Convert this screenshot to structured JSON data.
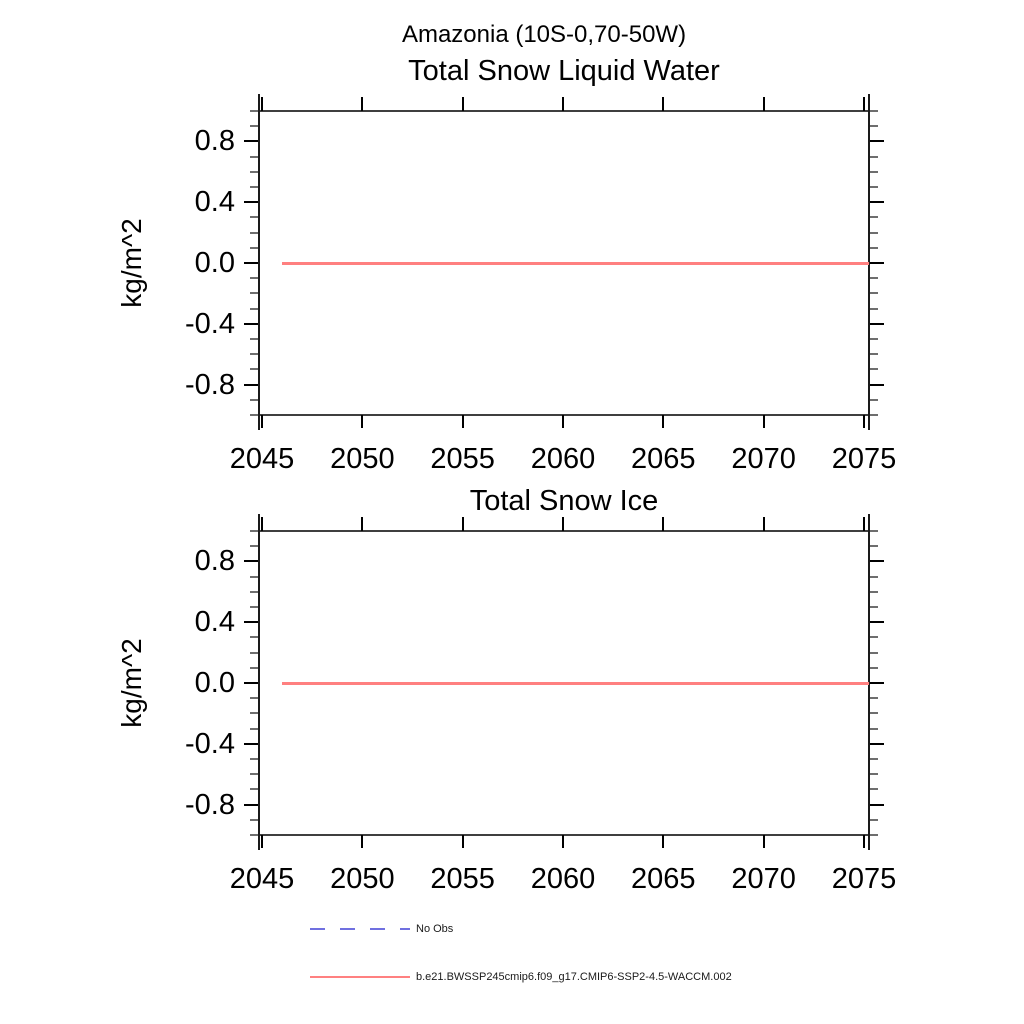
{
  "figure": {
    "suptitle": "Amazonia (10S-0,70-50W)"
  },
  "chart_data": [
    {
      "type": "line",
      "title": "Total Snow Liquid Water",
      "xlabel": "",
      "ylabel": "kg/m^2",
      "xlim": [
        2044.85,
        2075.25
      ],
      "ylim": [
        -1.0,
        1.0
      ],
      "xticks": [
        2045,
        2050,
        2055,
        2060,
        2065,
        2070,
        2075
      ],
      "yticks": [
        0.8,
        0.4,
        0.0,
        -0.4,
        -0.8
      ],
      "ytick_labels": [
        "0.8",
        "0.4",
        "0.0",
        "-0.4",
        "-0.8"
      ],
      "yminor_step": 0.1,
      "grid": false,
      "legend_position": "below-figure",
      "series": [
        {
          "name": "b.e21.BWSSP245cmip6.f09_g17.CMIP6-SSP2-4.5-WACCM.002",
          "color": "#ff8080",
          "x": [
            2046.0,
            2075.25
          ],
          "y": [
            0.0,
            0.0
          ]
        }
      ]
    },
    {
      "type": "line",
      "title": "Total Snow Ice",
      "xlabel": "",
      "ylabel": "kg/m^2",
      "xlim": [
        2044.85,
        2075.25
      ],
      "ylim": [
        -1.0,
        1.0
      ],
      "xticks": [
        2045,
        2050,
        2055,
        2060,
        2065,
        2070,
        2075
      ],
      "yticks": [
        0.8,
        0.4,
        0.0,
        -0.4,
        -0.8
      ],
      "ytick_labels": [
        "0.8",
        "0.4",
        "0.0",
        "-0.4",
        "-0.8"
      ],
      "yminor_step": 0.1,
      "grid": false,
      "legend_position": "below-figure",
      "series": [
        {
          "name": "b.e21.BWSSP245cmip6.f09_g17.CMIP6-SSP2-4.5-WACCM.002",
          "color": "#ff8080",
          "x": [
            2046.0,
            2075.25
          ],
          "y": [
            0.0,
            0.0
          ]
        }
      ]
    }
  ],
  "legend": {
    "entries": [
      {
        "label": "No Obs",
        "color": "#7070e0",
        "style": "dashed"
      },
      {
        "label": "b.e21.BWSSP245cmip6.f09_g17.CMIP6-SSP2-4.5-WACCM.002",
        "color": "#ff8080",
        "style": "solid"
      }
    ]
  }
}
